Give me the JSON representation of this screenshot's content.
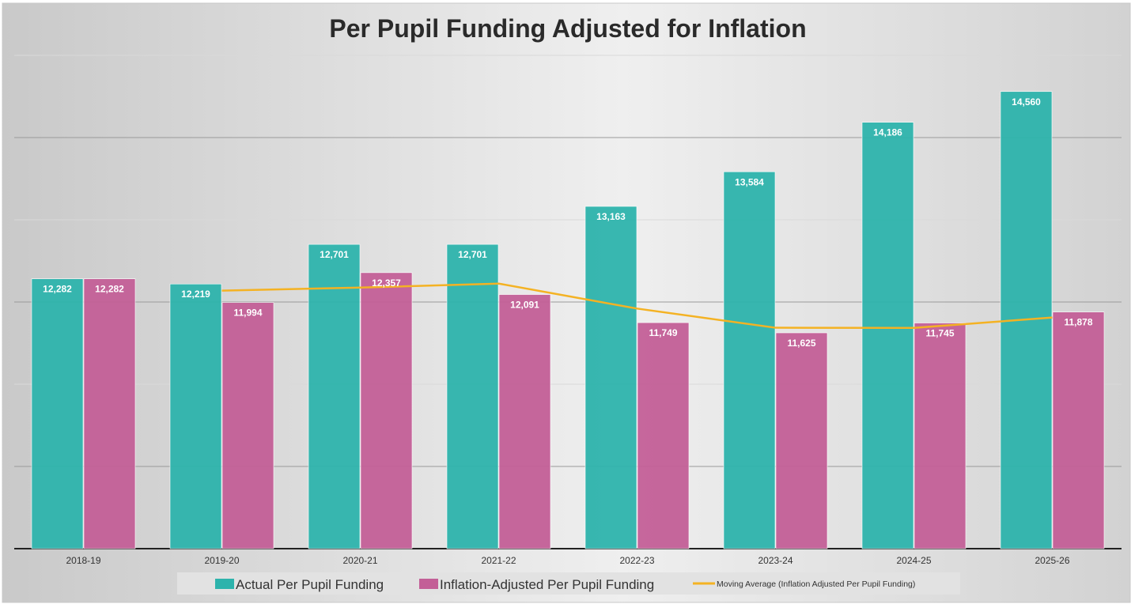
{
  "chart_data": {
    "type": "bar",
    "title": "Per Pupil Funding Adjusted for Inflation",
    "categories": [
      "2018-19",
      "2019-20",
      "2020-21",
      "2021-22",
      "2022-23",
      "2023-24",
      "2024-25",
      "2025-26"
    ],
    "series": [
      {
        "name": "Actual Per Pupil Funding",
        "color": "#2db3ac",
        "values": [
          12282,
          12219,
          12701,
          12701,
          13163,
          13584,
          14186,
          14560
        ],
        "labels": [
          "12,282",
          "12,219",
          "12,701",
          "12,701",
          "13,163",
          "13,584",
          "14,186",
          "14,560"
        ]
      },
      {
        "name": "Inflation-Adjusted Per Pupil Funding",
        "color": "#c35f97",
        "values": [
          12282,
          11994,
          12357,
          12091,
          11749,
          11625,
          11745,
          11878
        ],
        "labels": [
          "12,282",
          "11,994",
          "12,357",
          "12,091",
          "11,749",
          "11,625",
          "11,745",
          "11,878"
        ]
      }
    ],
    "trendline": {
      "name": "Moving Average (Inflation Adjusted Per Pupil Funding)",
      "type": "2-period moving average",
      "color": "#f4b223",
      "values": [
        null,
        12138,
        12175.5,
        12224,
        11920,
        11687,
        11685,
        11811.5
      ]
    },
    "ylim": [
      9000,
      15000
    ],
    "yticks": [
      9000,
      10000,
      11000,
      12000,
      13000,
      14000,
      15000
    ],
    "y_tick_labels_shown": false,
    "grid": true,
    "legend": "bottom"
  }
}
